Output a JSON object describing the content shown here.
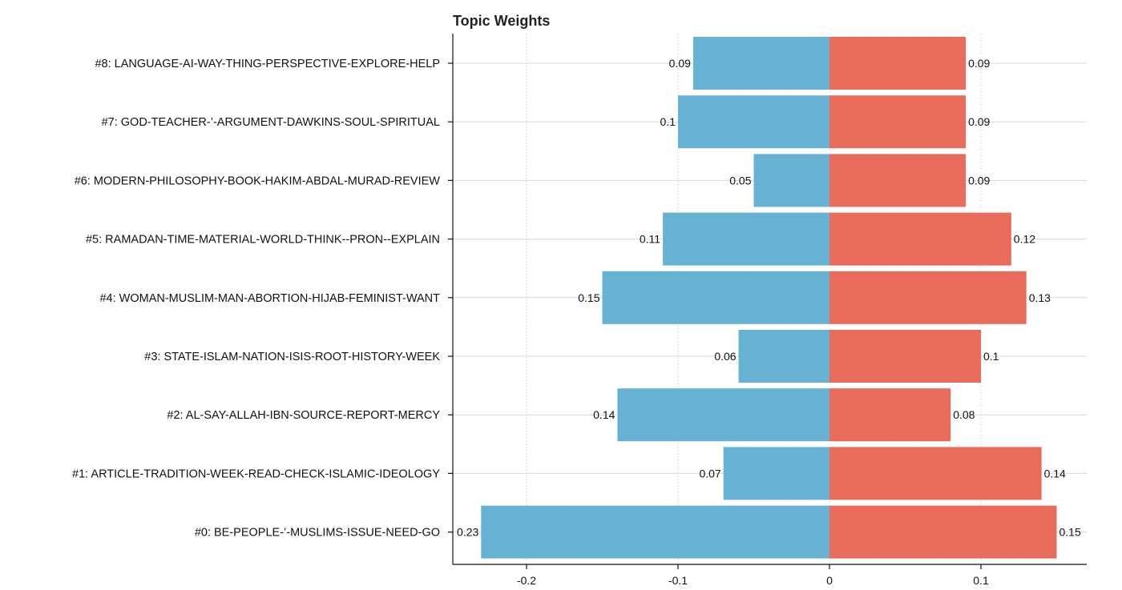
{
  "chart_data": {
    "type": "bar",
    "orientation": "horizontal-diverging",
    "title": "Topic Weights",
    "xlabel": "",
    "ylabel": "",
    "xlim": [
      -0.25,
      0.17
    ],
    "x_ticks": [
      -0.2,
      -0.1,
      0,
      0.1
    ],
    "x_tick_labels": [
      "-0.2",
      "-0.1",
      "0",
      "0.1"
    ],
    "grid": true,
    "legend": "none",
    "categories": [
      "#8: LANGUAGE-AI-WAY-THING-PERSPECTIVE-EXPLORE-HELP",
      "#7: GOD-TEACHER-’-ARGUMENT-DAWKINS-SOUL-SPIRITUAL",
      "#6: MODERN-PHILOSOPHY-BOOK-HAKIM-ABDAL-MURAD-REVIEW",
      "#5: RAMADAN-TIME-MATERIAL-WORLD-THINK--PRON--EXPLAIN",
      "#4: WOMAN-MUSLIM-MAN-ABORTION-HIJAB-FEMINIST-WANT",
      "#3: STATE-ISLAM-NATION-ISIS-ROOT-HISTORY-WEEK",
      "#2: AL-SAY-ALLAH-IBN-SOURCE-REPORT-MERCY",
      "#1: ARTICLE-TRADITION-WEEK-READ-CHECK-ISLAMIC-IDEOLOGY",
      "#0: BE-PEOPLE-’-MUSLIMS-ISSUE-NEED-GO"
    ],
    "series": [
      {
        "color": "#67b1d3",
        "direction": "left",
        "values": [
          0.09,
          0.1,
          0.05,
          0.11,
          0.15,
          0.06,
          0.14,
          0.07,
          0.23
        ],
        "labels": [
          "0.09",
          "0.1",
          "0.05",
          "0.11",
          "0.15",
          "0.06",
          "0.14",
          "0.07",
          "0.23"
        ]
      },
      {
        "color": "#e86b5b",
        "direction": "right",
        "values": [
          0.09,
          0.09,
          0.09,
          0.12,
          0.13,
          0.1,
          0.08,
          0.14,
          0.15
        ],
        "labels": [
          "0.09",
          "0.09",
          "0.09",
          "0.12",
          "0.13",
          "0.1",
          "0.08",
          "0.14",
          "0.15"
        ]
      }
    ]
  }
}
